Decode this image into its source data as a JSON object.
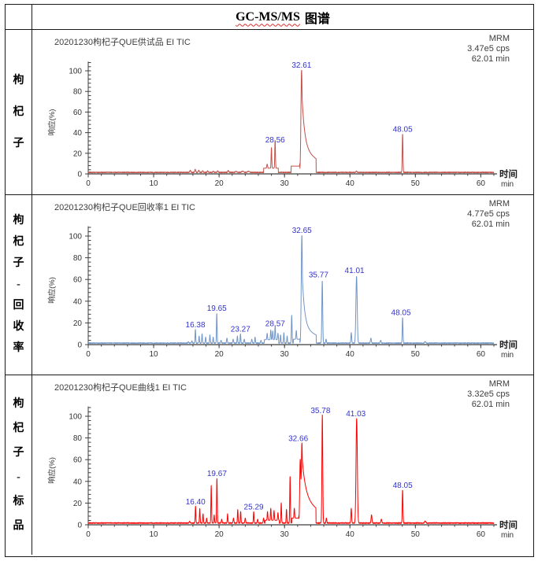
{
  "header": {
    "title_latin": "GC-MS/MS",
    "title_cjk": "图谱"
  },
  "rows": [
    {
      "label": "枸杞子"
    },
    {
      "label": "枸杞子-回收率"
    },
    {
      "label": "枸杞子-标品"
    }
  ],
  "chart_data": [
    {
      "type": "line",
      "title": "20201230枸杞子QUE供试品 EI TIC",
      "acq_mode": "MRM",
      "intensity": "3.47e5 cps",
      "run_time": "62.01 min",
      "xlabel": "时间",
      "x_unit": "min",
      "ylabel": "响应(%)",
      "xlim": [
        0,
        62
      ],
      "ylim": [
        0,
        110
      ],
      "xticks": [
        0,
        10,
        20,
        30,
        40,
        50,
        60
      ],
      "yticks": [
        0,
        20,
        40,
        60,
        80,
        100
      ],
      "grid": false,
      "line_color": "#c05048",
      "label_color": "#3333cc",
      "baseline": 1.0,
      "noise": 0.9,
      "plateaus": [
        [
          26.8,
          29.05,
          4.5
        ],
        [
          31.0,
          32.34,
          6.5
        ]
      ],
      "peaks": [
        [
          15.6,
          2.5,
          0.07
        ],
        [
          16.35,
          3.5,
          0.07
        ],
        [
          16.9,
          2.5,
          0.07
        ],
        [
          17.5,
          2.0,
          0.07
        ],
        [
          18.25,
          1.8,
          0.07
        ],
        [
          19.1,
          1.5,
          0.07
        ],
        [
          19.8,
          1.8,
          0.07
        ],
        [
          21.4,
          2.2,
          0.08
        ],
        [
          22.6,
          1.2,
          0.12
        ],
        [
          23.6,
          1.4,
          0.15
        ],
        [
          24.5,
          1.2,
          0.15
        ],
        [
          27.35,
          4.0,
          0.06
        ],
        [
          28.0,
          20,
          0.05
        ],
        [
          28.56,
          27,
          0.05
        ],
        [
          32.61,
          100,
          0.1
        ],
        [
          41.0,
          1.5,
          0.08
        ],
        [
          48.05,
          38,
          0.055
        ]
      ],
      "tail": {
        "t0": 32.61,
        "a": 58,
        "ka": 0.4,
        "b": 26,
        "kb": 3.4,
        "cut": 34.82
      },
      "peak_labels": [
        {
          "t": 28.56,
          "v": 30.5,
          "text": "28.56"
        },
        {
          "t": 32.61,
          "v": 103,
          "text": "32.61"
        },
        {
          "t": 48.05,
          "v": 41,
          "text": "48.05"
        }
      ]
    },
    {
      "type": "line",
      "title": "20201230枸杞子QUE回收率1 EI TIC",
      "acq_mode": "MRM",
      "intensity": "4.77e5 cps",
      "run_time": "62.01 min",
      "xlabel": "时间",
      "x_unit": "min",
      "ylabel": "响应(%)",
      "xlim": [
        0,
        62
      ],
      "ylim": [
        0,
        110
      ],
      "xticks": [
        0,
        10,
        20,
        30,
        40,
        50,
        60
      ],
      "yticks": [
        0,
        20,
        40,
        60,
        80,
        100
      ],
      "grid": false,
      "line_color": "#7095c5",
      "label_color": "#3333cc",
      "baseline": 1.0,
      "noise": 0.8,
      "plateaus": [
        [
          26.9,
          29.1,
          3.5
        ],
        [
          31.35,
          32.35,
          4.0
        ]
      ],
      "peaks": [
        [
          15.3,
          1.5,
          0.06
        ],
        [
          15.85,
          2.5,
          0.06
        ],
        [
          16.38,
          13,
          0.05
        ],
        [
          16.95,
          7,
          0.05
        ],
        [
          17.4,
          9,
          0.05
        ],
        [
          17.95,
          6,
          0.05
        ],
        [
          18.6,
          8,
          0.05
        ],
        [
          19.1,
          6,
          0.05
        ],
        [
          19.65,
          28,
          0.05
        ],
        [
          20.3,
          3,
          0.06
        ],
        [
          21.2,
          5,
          0.06
        ],
        [
          22.15,
          4,
          0.06
        ],
        [
          22.8,
          7,
          0.05
        ],
        [
          23.27,
          9,
          0.05
        ],
        [
          23.85,
          4,
          0.06
        ],
        [
          25.0,
          4,
          0.06
        ],
        [
          25.5,
          6,
          0.05
        ],
        [
          26.4,
          3,
          0.06
        ],
        [
          27.35,
          6,
          0.05
        ],
        [
          27.9,
          9,
          0.05
        ],
        [
          28.2,
          8,
          0.05
        ],
        [
          28.57,
          13,
          0.05
        ],
        [
          29.0,
          6,
          0.05
        ],
        [
          29.4,
          8,
          0.05
        ],
        [
          29.9,
          10,
          0.05
        ],
        [
          30.4,
          7,
          0.05
        ],
        [
          31.1,
          26,
          0.055
        ],
        [
          31.8,
          8,
          0.05
        ],
        [
          32.65,
          100,
          0.09
        ],
        [
          35.77,
          58,
          0.065
        ],
        [
          36.35,
          4,
          0.06
        ],
        [
          40.2,
          10,
          0.06
        ],
        [
          41.01,
          62,
          0.1
        ],
        [
          43.2,
          5,
          0.07
        ],
        [
          44.7,
          3,
          0.07
        ],
        [
          48.05,
          24,
          0.055
        ],
        [
          51.5,
          1.5,
          0.1
        ]
      ],
      "tail": {
        "t0": 32.65,
        "a": 55,
        "ka": 0.35,
        "b": 17,
        "kb": 2.8,
        "cut": 34.85
      },
      "peak_labels": [
        {
          "t": 16.38,
          "v": 16,
          "text": "16.38"
        },
        {
          "t": 19.65,
          "v": 31,
          "text": "19.65"
        },
        {
          "t": 23.27,
          "v": 12,
          "text": "23.27"
        },
        {
          "t": 28.57,
          "v": 17,
          "text": "28.57"
        },
        {
          "t": 32.65,
          "v": 103,
          "text": "32.65"
        },
        {
          "t": 35.2,
          "v": 62,
          "text": "35.77"
        },
        {
          "t": 40.7,
          "v": 66,
          "text": "41.01"
        },
        {
          "t": 47.8,
          "v": 27,
          "text": "48.05"
        }
      ]
    },
    {
      "type": "line",
      "title": "20201230枸杞子QUE曲线1 EI TIC",
      "acq_mode": "MRM",
      "intensity": "3.32e5 cps",
      "run_time": "62.01 min",
      "xlabel": "时间",
      "x_unit": "min",
      "ylabel": "响应(%)",
      "xlim": [
        0,
        62
      ],
      "ylim": [
        0,
        110
      ],
      "xticks": [
        0,
        10,
        20,
        30,
        40,
        50,
        60
      ],
      "yticks": [
        0,
        20,
        40,
        60,
        80,
        100
      ],
      "grid": false,
      "line_color": "#fe0000",
      "label_color": "#3333cc",
      "baseline": 1.2,
      "noise": 0.9,
      "plateaus": [
        [
          27.0,
          29.2,
          3.0
        ],
        [
          31.1,
          32.2,
          5.0
        ]
      ],
      "peaks": [
        [
          15.5,
          1.8,
          0.06
        ],
        [
          16.4,
          16,
          0.05
        ],
        [
          17.05,
          14,
          0.05
        ],
        [
          17.55,
          9,
          0.05
        ],
        [
          18.1,
          5,
          0.05
        ],
        [
          18.8,
          35,
          0.05
        ],
        [
          19.25,
          8,
          0.05
        ],
        [
          19.67,
          42,
          0.05
        ],
        [
          20.4,
          4,
          0.06
        ],
        [
          21.3,
          9,
          0.05
        ],
        [
          22.2,
          5,
          0.06
        ],
        [
          22.85,
          13,
          0.05
        ],
        [
          23.3,
          11,
          0.05
        ],
        [
          24.0,
          5,
          0.06
        ],
        [
          25.29,
          11,
          0.05
        ],
        [
          25.9,
          4,
          0.06
        ],
        [
          26.8,
          5,
          0.06
        ],
        [
          27.4,
          8,
          0.05
        ],
        [
          27.9,
          11,
          0.05
        ],
        [
          28.4,
          9,
          0.05
        ],
        [
          29.0,
          7,
          0.05
        ],
        [
          29.5,
          19,
          0.05
        ],
        [
          30.3,
          13,
          0.05
        ],
        [
          30.85,
          44,
          0.05
        ],
        [
          31.5,
          9,
          0.05
        ],
        [
          32.4,
          58,
          0.08
        ],
        [
          32.66,
          74,
          0.09
        ],
        [
          35.78,
          100,
          0.065
        ],
        [
          36.4,
          5,
          0.06
        ],
        [
          40.2,
          14,
          0.06
        ],
        [
          41.03,
          97,
          0.1
        ],
        [
          43.3,
          8,
          0.07
        ],
        [
          44.8,
          4,
          0.07
        ],
        [
          48.05,
          31,
          0.055
        ],
        [
          51.5,
          2,
          0.1
        ]
      ],
      "tail": {
        "t0": 32.66,
        "a": 36,
        "ka": 0.5,
        "b": 27,
        "kb": 3.2,
        "cut": 34.8
      },
      "peak_labels": [
        {
          "t": 16.4,
          "v": 19,
          "text": "16.40"
        },
        {
          "t": 19.67,
          "v": 45,
          "text": "19.67"
        },
        {
          "t": 25.29,
          "v": 14,
          "text": "25.29"
        },
        {
          "t": 32.1,
          "v": 77,
          "text": "32.66"
        },
        {
          "t": 35.5,
          "v": 103,
          "text": "35.78"
        },
        {
          "t": 40.9,
          "v": 100,
          "text": "41.03"
        },
        {
          "t": 48.05,
          "v": 34,
          "text": "48.05"
        }
      ]
    }
  ]
}
